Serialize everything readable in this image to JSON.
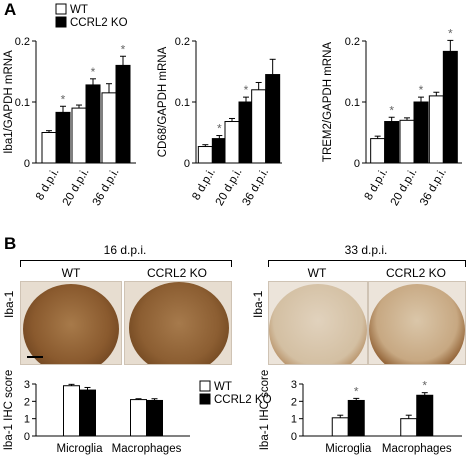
{
  "panel_a": {
    "letter": "A"
  },
  "panel_b": {
    "letter": "B",
    "groups": [
      {
        "timepoint": "16 d.p.i.",
        "wt_label": "WT",
        "ko_label": "CCRL2 KO",
        "stain_label": "Iba-1"
      },
      {
        "timepoint": "33 d.p.i.",
        "wt_label": "WT",
        "ko_label": "CCRL2 KO",
        "stain_label": "Iba-1"
      }
    ]
  },
  "colors": {
    "wt": "#ffffff",
    "ko": "#000000",
    "tissue_brown": "#8a5a2e",
    "tissue_light": "#d8c6ad"
  },
  "chart_data": [
    {
      "type": "bar",
      "categories": [
        "8 d.p.i.",
        "20 d.p.i.",
        "36 d.p.i."
      ],
      "series": [
        {
          "name": "WT",
          "values": [
            0.05,
            0.09,
            0.115
          ],
          "errors": [
            0.003,
            0.005,
            0.015
          ]
        },
        {
          "name": "CCRL2 KO",
          "values": [
            0.083,
            0.128,
            0.16
          ],
          "errors": [
            0.01,
            0.01,
            0.015
          ]
        }
      ],
      "significance": [
        "*",
        "*",
        "*"
      ],
      "ylabel": "Iba1/GAPDH mRNA",
      "ylim": [
        0,
        0.2
      ],
      "yticks": [
        "0",
        "0.1",
        "0.2"
      ],
      "legend": [
        "WT",
        "CCRL2 KO"
      ],
      "legend_position": "top-left"
    },
    {
      "type": "bar",
      "categories": [
        "8 d.p.i.",
        "20 d.p.i.",
        "36 d.p.i."
      ],
      "series": [
        {
          "name": "WT",
          "values": [
            0.027,
            0.068,
            0.12
          ],
          "errors": [
            0.003,
            0.005,
            0.012
          ]
        },
        {
          "name": "CCRL2 KO",
          "values": [
            0.04,
            0.1,
            0.145
          ],
          "errors": [
            0.005,
            0.008,
            0.025
          ]
        }
      ],
      "significance": [
        "*",
        "*",
        ""
      ],
      "ylabel": "CD68/GAPDH mRNA",
      "ylim": [
        0,
        0.2
      ],
      "yticks": [
        "0",
        "0.1",
        "0.2"
      ]
    },
    {
      "type": "bar",
      "categories": [
        "8 d.p.i.",
        "20 d.p.i.",
        "36 d.p.i."
      ],
      "series": [
        {
          "name": "WT",
          "values": [
            0.04,
            0.07,
            0.11
          ],
          "errors": [
            0.004,
            0.004,
            0.006
          ]
        },
        {
          "name": "CCRL2 KO",
          "values": [
            0.068,
            0.1,
            0.183
          ],
          "errors": [
            0.007,
            0.008,
            0.018
          ]
        }
      ],
      "significance": [
        "*",
        "*",
        "*"
      ],
      "ylabel": "TREM2/GAPDH mRNA",
      "ylim": [
        0,
        0.2
      ],
      "yticks": [
        "0",
        "0.1",
        "0.2"
      ]
    },
    {
      "type": "bar",
      "categories": [
        "Microglia",
        "Macrophages"
      ],
      "series": [
        {
          "name": "WT",
          "values": [
            2.9,
            2.1
          ],
          "errors": [
            0.08,
            0.05
          ]
        },
        {
          "name": "CCRL2 KO",
          "values": [
            2.65,
            2.05
          ],
          "errors": [
            0.15,
            0.1
          ]
        }
      ],
      "significance": [
        "",
        ""
      ],
      "ylabel": "Iba-1 IHC score",
      "ylim": [
        0,
        3
      ],
      "yticks": [
        "0",
        "1",
        "2",
        "3"
      ],
      "legend": [
        "WT",
        "CCRL2 KO"
      ],
      "legend_position": "top-right"
    },
    {
      "type": "bar",
      "categories": [
        "Microglia",
        "Macrophages"
      ],
      "series": [
        {
          "name": "WT",
          "values": [
            1.05,
            1.0
          ],
          "errors": [
            0.15,
            0.2
          ]
        },
        {
          "name": "CCRL2 KO",
          "values": [
            2.05,
            2.35
          ],
          "errors": [
            0.12,
            0.15
          ]
        }
      ],
      "significance": [
        "*",
        "*"
      ],
      "ylabel": "Iba-1 IHC score",
      "ylim": [
        0,
        3
      ],
      "yticks": [
        "0",
        "1",
        "2",
        "3"
      ]
    }
  ]
}
